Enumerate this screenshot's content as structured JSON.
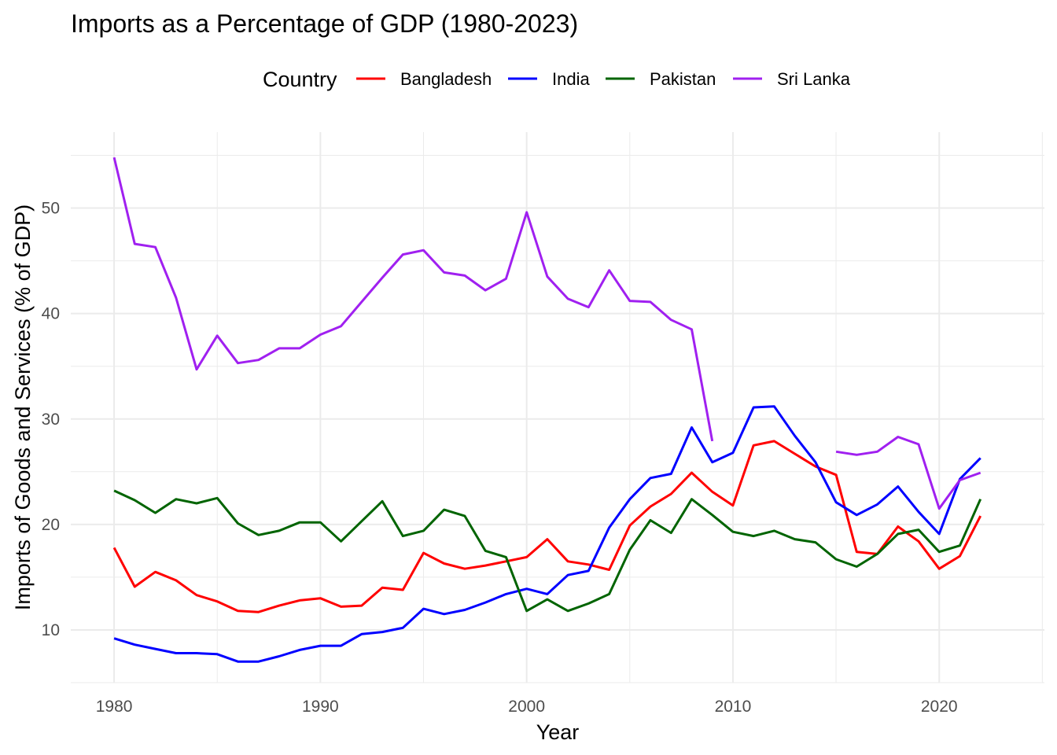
{
  "chart_data": {
    "type": "line",
    "title": "Imports as a Percentage of GDP (1980-2023)",
    "xlabel": "Year",
    "ylabel": "Imports of Goods and Services (% of GDP)",
    "xlim": [
      1977.9,
      2025.1
    ],
    "ylim": [
      5,
      57.2
    ],
    "xticks": [
      1980,
      1990,
      2000,
      2010,
      2020
    ],
    "yticks": [
      10,
      20,
      30,
      40,
      50
    ],
    "grid": true,
    "legend": {
      "title": "Country",
      "placement": "top"
    },
    "x": [
      1980,
      1981,
      1982,
      1983,
      1984,
      1985,
      1986,
      1987,
      1988,
      1989,
      1990,
      1991,
      1992,
      1993,
      1994,
      1995,
      1996,
      1997,
      1998,
      1999,
      2000,
      2001,
      2002,
      2003,
      2004,
      2005,
      2006,
      2007,
      2008,
      2009,
      2010,
      2011,
      2012,
      2013,
      2014,
      2015,
      2016,
      2017,
      2018,
      2019,
      2020,
      2021,
      2022
    ],
    "series": [
      {
        "name": "Bangladesh",
        "color": "#ff0000",
        "values": [
          17.8,
          14.1,
          15.5,
          14.7,
          13.3,
          12.7,
          11.8,
          11.7,
          12.3,
          12.8,
          13.0,
          12.2,
          12.3,
          14.0,
          13.8,
          17.3,
          16.3,
          15.8,
          16.1,
          16.5,
          16.9,
          18.6,
          16.5,
          16.2,
          15.7,
          19.9,
          21.7,
          22.9,
          24.9,
          23.1,
          21.8,
          27.5,
          27.9,
          26.7,
          25.5,
          24.7,
          17.4,
          17.2,
          19.8,
          18.4,
          15.8,
          17.0,
          20.8
        ]
      },
      {
        "name": "India",
        "color": "#0000ff",
        "values": [
          9.2,
          8.6,
          8.2,
          7.8,
          7.8,
          7.7,
          7.0,
          7.0,
          7.5,
          8.1,
          8.5,
          8.5,
          9.6,
          9.8,
          10.2,
          12.0,
          11.5,
          11.9,
          12.6,
          13.4,
          13.9,
          13.4,
          15.2,
          15.6,
          19.7,
          22.4,
          24.4,
          24.8,
          29.2,
          25.9,
          26.8,
          31.1,
          31.2,
          28.4,
          25.9,
          22.1,
          20.9,
          21.9,
          23.6,
          21.2,
          19.1,
          24.3,
          26.3
        ]
      },
      {
        "name": "Pakistan",
        "color": "#006400",
        "values": [
          23.2,
          22.3,
          21.1,
          22.4,
          22.0,
          22.5,
          20.1,
          19.0,
          19.4,
          20.2,
          20.2,
          18.4,
          20.3,
          22.2,
          18.9,
          19.4,
          21.4,
          20.8,
          17.5,
          16.9,
          11.8,
          12.9,
          11.8,
          12.5,
          13.4,
          17.6,
          20.4,
          19.2,
          22.4,
          20.9,
          19.3,
          18.9,
          19.4,
          18.6,
          18.3,
          16.7,
          16.0,
          17.2,
          19.1,
          19.5,
          17.4,
          18.0,
          22.4
        ]
      },
      {
        "name": "Sri Lanka",
        "color": "#a020f0",
        "values": [
          54.8,
          46.6,
          46.3,
          41.5,
          34.7,
          37.9,
          35.3,
          35.6,
          36.7,
          36.7,
          38.0,
          38.8,
          41.1,
          43.4,
          45.6,
          46.0,
          43.9,
          43.6,
          42.2,
          43.3,
          49.6,
          43.5,
          41.4,
          40.6,
          44.1,
          41.2,
          41.1,
          39.4,
          38.5,
          27.9,
          null,
          null,
          null,
          null,
          null,
          26.9,
          26.6,
          26.9,
          28.3,
          27.6,
          21.5,
          24.2,
          24.9
        ]
      }
    ]
  }
}
